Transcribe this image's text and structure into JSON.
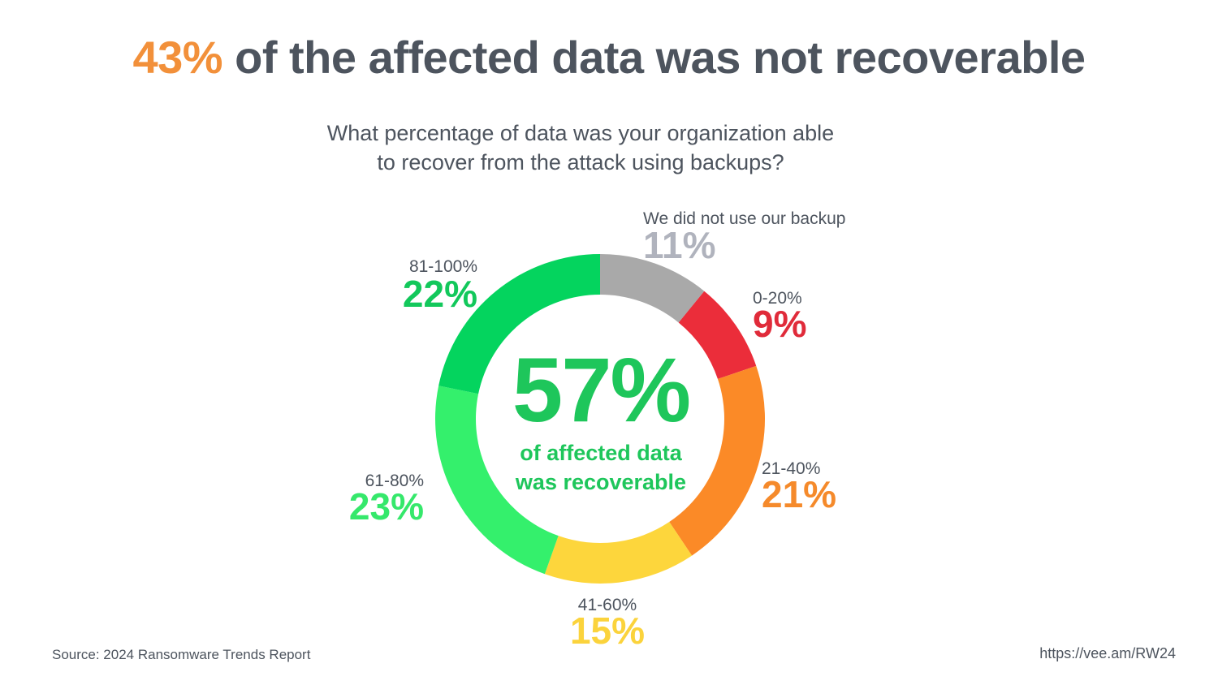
{
  "headline": {
    "accent": "43%",
    "rest": " of the affected data was not recoverable",
    "accent_color": "#f2903a"
  },
  "subtitle": {
    "line1": "What percentage of data was your organization able",
    "line2": "to recover from the attack using backups?"
  },
  "center": {
    "value": "57%",
    "caption_line1": "of affected data",
    "caption_line2": "was recoverable",
    "color": "#1ec65b"
  },
  "footer": {
    "source": "Source: 2024 Ransomware Trends Report",
    "link": "https://vee.am/RW24"
  },
  "chart_data": {
    "type": "pie",
    "donut": true,
    "start": "12 o'clock",
    "direction": "clockwise",
    "slices": [
      {
        "label": "We did not use our backup",
        "value": 11,
        "value_label": "11%",
        "color": "#a9a9a9",
        "label_color": "#b0b3bd"
      },
      {
        "label": "0-20%",
        "value": 9,
        "value_label": "9%",
        "color": "#eb2d3a",
        "label_color": "#e02b3a"
      },
      {
        "label": "21-40%",
        "value": 21,
        "value_label": "21%",
        "color": "#fb8a27",
        "label_color": "#f58a2b"
      },
      {
        "label": "41-60%",
        "value": 15,
        "value_label": "15%",
        "color": "#fdd63c",
        "label_color": "#fbd33c"
      },
      {
        "label": "61-80%",
        "value": 23,
        "value_label": "23%",
        "color": "#34f06c",
        "label_color": "#35e86b"
      },
      {
        "label": "81-100%",
        "value": 22,
        "value_label": "22%",
        "color": "#04d45e",
        "label_color": "#12c85b"
      }
    ]
  }
}
